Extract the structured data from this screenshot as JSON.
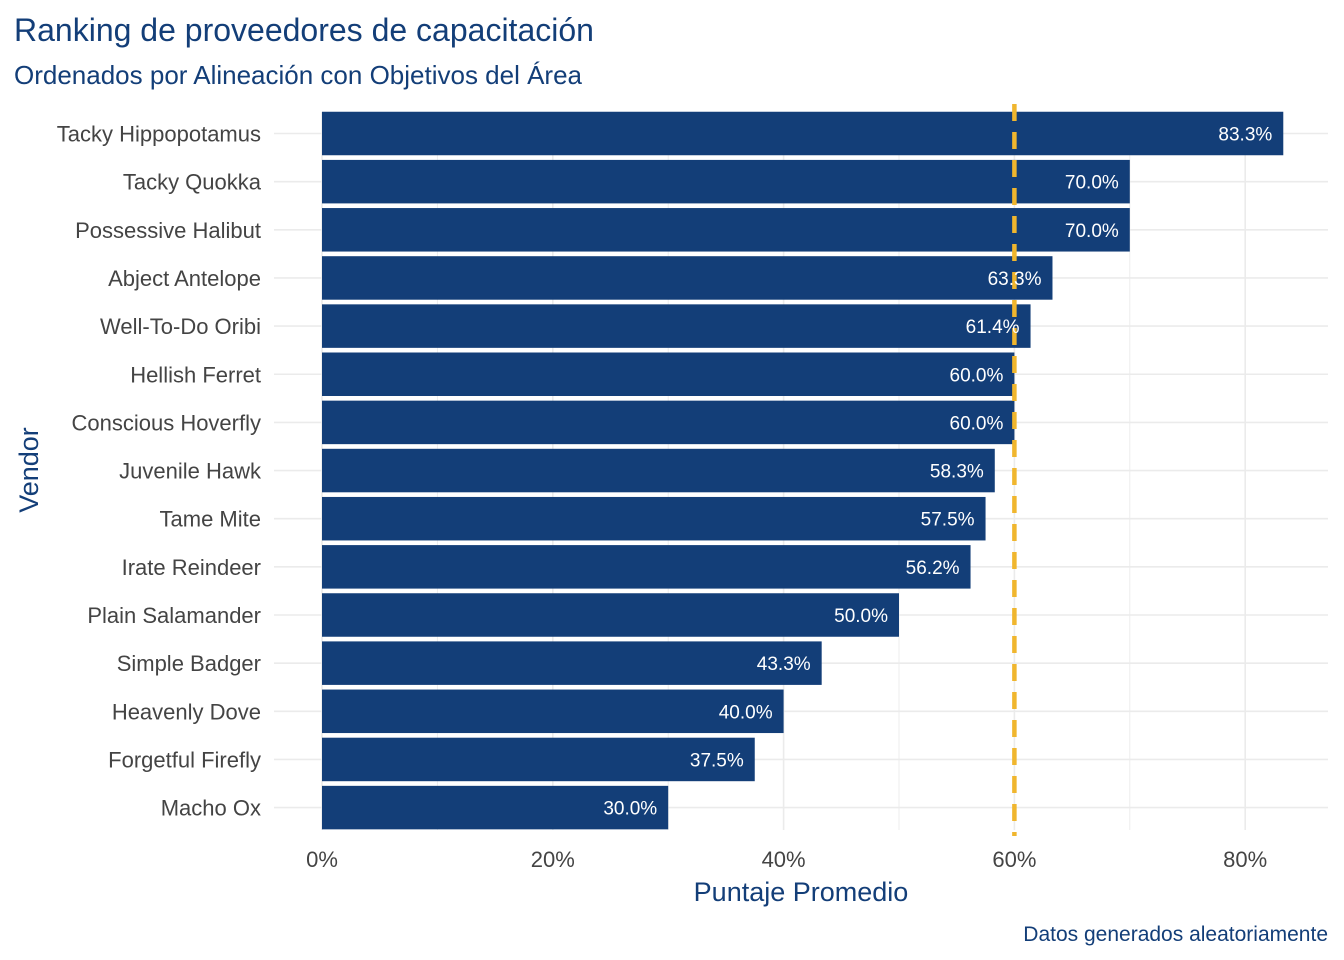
{
  "chart_data": {
    "type": "bar",
    "orientation": "horizontal",
    "title": "Ranking de proveedores de capacitación",
    "subtitle": "Ordenados por Alineación con Objetivos del Área",
    "xlabel": "Puntaje Promedio",
    "ylabel": "Vendor",
    "caption": "Datos generados aleatoriamente",
    "categories": [
      "Tacky Hippopotamus",
      "Tacky Quokka",
      "Possessive Halibut",
      "Abject Antelope",
      "Well-To-Do Oribi",
      "Hellish Ferret",
      "Conscious Hoverfly",
      "Juvenile Hawk",
      "Tame Mite",
      "Irate Reindeer",
      "Plain Salamander",
      "Simple Badger",
      "Heavenly Dove",
      "Forgetful Firefly",
      "Macho Ox"
    ],
    "values": [
      83.3,
      70.0,
      70.0,
      63.3,
      61.4,
      60.0,
      60.0,
      58.3,
      57.5,
      56.2,
      50.0,
      43.3,
      40.0,
      37.5,
      30.0
    ],
    "data_labels": [
      "83.3%",
      "70.0%",
      "70.0%",
      "63.3%",
      "61.4%",
      "60.0%",
      "60.0%",
      "58.3%",
      "57.5%",
      "56.2%",
      "50.0%",
      "43.3%",
      "40.0%",
      "37.5%",
      "30.0%"
    ],
    "xlim": [
      -4.2,
      87.4
    ],
    "x_ticks": [
      0,
      20,
      40,
      60,
      80
    ],
    "x_tick_labels": [
      "0%",
      "20%",
      "40%",
      "60%",
      "80%"
    ],
    "reference_line": {
      "value": 60,
      "style": "dashed",
      "color": "#F0B62E"
    },
    "grid": true,
    "colors": {
      "bar": "#133E78",
      "title": "#133E78",
      "axis_title": "#133E78",
      "tick_text": "#444444",
      "bar_label": "#ffffff",
      "grid": "#EBEBEB",
      "reference": "#F0B62E"
    }
  }
}
